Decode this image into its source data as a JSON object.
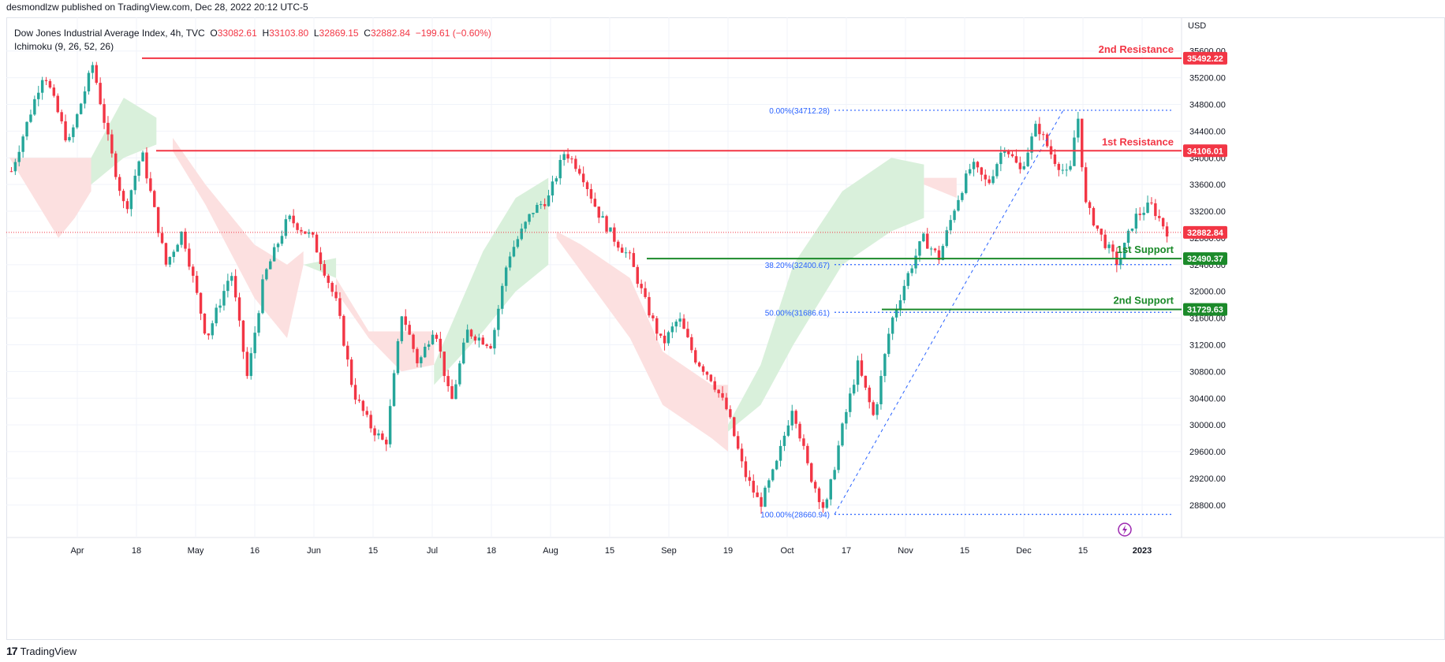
{
  "header": {
    "publisher_line": "desmondlzw published on TradingView.com, Dec 28, 2022 20:12 UTC-5"
  },
  "legend": {
    "symbol": "Dow Jones Industrial Average Index, 4h, TVC",
    "open_label": "O",
    "open": "33082.61",
    "high_label": "H",
    "high": "33103.80",
    "low_label": "L",
    "low": "32869.15",
    "close_label": "C",
    "close": "32882.84",
    "change": "−199.61 (−0.60%)",
    "indicator": "Ichimoku (9, 26, 52, 26)"
  },
  "footer": {
    "brand": "TradingView",
    "logo_glyph": "17"
  },
  "colors": {
    "up": "#26a69a",
    "down": "#f23645",
    "resistance": "#f23645",
    "support": "#1b8a2a",
    "cloud_green": "#d7efd9",
    "cloud_red": "#fcdede",
    "fib": "#2962ff",
    "grid": "#f0f3fa"
  },
  "chart_data": {
    "type": "candlestick",
    "currency": "USD",
    "y_ticks": [
      28800,
      29200,
      29600,
      30000,
      30400,
      30800,
      31200,
      31600,
      32000,
      32400,
      32800,
      33200,
      33600,
      34000,
      34400,
      34800,
      35200,
      35600
    ],
    "y_range": [
      28550,
      35750
    ],
    "x_tick_labels": [
      "Apr",
      "18",
      "May",
      "16",
      "Jun",
      "15",
      "Jul",
      "18",
      "Aug",
      "15",
      "Sep",
      "19",
      "Oct",
      "17",
      "Nov",
      "15",
      "Dec",
      "15",
      "2023"
    ],
    "levels": [
      {
        "name": "2nd Resistance",
        "value": 35492.22,
        "value_label": "35492.22",
        "kind": "resistance"
      },
      {
        "name": "1st Resistance",
        "value": 34106.01,
        "value_label": "34106.01",
        "kind": "resistance"
      },
      {
        "name": "1st Support",
        "value": 32490.37,
        "value_label": "32490.37",
        "kind": "support"
      },
      {
        "name": "2nd Support",
        "value": 31729.63,
        "value_label": "31729.63",
        "kind": "support"
      }
    ],
    "last_price": {
      "value": 32882.84,
      "label": "32882.84"
    },
    "fibonacci": [
      {
        "label": "0.00%(34712.28)",
        "value": 34712.28
      },
      {
        "label": "38.20%(32400.67)",
        "value": 32400.67
      },
      {
        "label": "50.00%(31686.61)",
        "value": 31686.61
      },
      {
        "label": "100.00%(28660.94)",
        "value": 28660.94
      }
    ],
    "price_path": [
      [
        0,
        33800
      ],
      [
        4,
        35300
      ],
      [
        7,
        34200
      ],
      [
        10,
        35400
      ],
      [
        12,
        34200
      ],
      [
        14,
        33200
      ],
      [
        16,
        34100
      ],
      [
        19,
        32400
      ],
      [
        21,
        32900
      ],
      [
        24,
        31300
      ],
      [
        27,
        32300
      ],
      [
        29,
        30700
      ],
      [
        31,
        32200
      ],
      [
        34,
        33100
      ],
      [
        37,
        32800
      ],
      [
        40,
        31800
      ],
      [
        42,
        30500
      ],
      [
        44,
        30000
      ],
      [
        46,
        29700
      ],
      [
        48,
        31700
      ],
      [
        50,
        30900
      ],
      [
        52,
        31500
      ],
      [
        54,
        30300
      ],
      [
        56,
        31400
      ],
      [
        59,
        31200
      ],
      [
        61,
        32500
      ],
      [
        64,
        33200
      ],
      [
        66,
        33400
      ],
      [
        68,
        34100
      ],
      [
        70,
        33800
      ],
      [
        72,
        33200
      ],
      [
        74,
        32800
      ],
      [
        76,
        32500
      ],
      [
        78,
        31800
      ],
      [
        80,
        31200
      ],
      [
        82,
        31600
      ],
      [
        84,
        31000
      ],
      [
        86,
        30700
      ],
      [
        88,
        30200
      ],
      [
        90,
        29300
      ],
      [
        92,
        28800
      ],
      [
        94,
        29400
      ],
      [
        96,
        30300
      ],
      [
        98,
        29300
      ],
      [
        100,
        28700
      ],
      [
        102,
        29900
      ],
      [
        104,
        30900
      ],
      [
        106,
        30100
      ],
      [
        108,
        31500
      ],
      [
        110,
        32200
      ],
      [
        112,
        32800
      ],
      [
        114,
        32500
      ],
      [
        116,
        33300
      ],
      [
        118,
        33900
      ],
      [
        120,
        33600
      ],
      [
        122,
        34200
      ],
      [
        124,
        33800
      ],
      [
        126,
        34500
      ],
      [
        128,
        34000
      ],
      [
        130,
        33700
      ],
      [
        131,
        34700
      ],
      [
        132,
        33300
      ],
      [
        134,
        32800
      ],
      [
        136,
        32400
      ],
      [
        138,
        33100
      ],
      [
        140,
        33300
      ],
      [
        142,
        32900
      ]
    ],
    "ichimoku_cloud": [
      {
        "color": "red",
        "pts": [
          [
            0,
            34000,
            34000
          ],
          [
            6,
            34000,
            32800
          ],
          [
            8,
            34000,
            33100
          ],
          [
            10,
            34000,
            33500
          ]
        ]
      },
      {
        "color": "green",
        "pts": [
          [
            10,
            34000,
            33600
          ],
          [
            14,
            34900,
            34000
          ],
          [
            18,
            34600,
            34200
          ]
        ]
      },
      {
        "color": "red",
        "pts": [
          [
            20,
            34300,
            34100
          ],
          [
            24,
            33600,
            33300
          ],
          [
            30,
            32700,
            31900
          ],
          [
            34,
            32400,
            31300
          ],
          [
            36,
            32600,
            32400
          ]
        ]
      },
      {
        "color": "green",
        "pts": [
          [
            36,
            32400,
            32400
          ],
          [
            40,
            32500,
            32200
          ]
        ]
      },
      {
        "color": "red",
        "pts": [
          [
            40,
            32200,
            32000
          ],
          [
            44,
            31400,
            31300
          ],
          [
            48,
            31400,
            30800
          ],
          [
            52,
            31400,
            30900
          ]
        ]
      },
      {
        "color": "green",
        "pts": [
          [
            52,
            30900,
            30600
          ],
          [
            58,
            32600,
            31400
          ],
          [
            62,
            33400,
            32000
          ],
          [
            66,
            33700,
            32400
          ]
        ]
      },
      {
        "color": "red",
        "pts": [
          [
            67,
            32900,
            32800
          ],
          [
            70,
            32700,
            32300
          ],
          [
            76,
            32200,
            31300
          ],
          [
            80,
            31100,
            30300
          ],
          [
            86,
            30600,
            29800
          ],
          [
            88,
            30600,
            29600
          ]
        ]
      },
      {
        "color": "green",
        "pts": [
          [
            88,
            30000,
            29900
          ],
          [
            92,
            30900,
            30300
          ],
          [
            96,
            32400,
            31200
          ],
          [
            102,
            33500,
            32400
          ],
          [
            108,
            34000,
            32900
          ],
          [
            112,
            33900,
            33100
          ]
        ]
      },
      {
        "color": "red",
        "pts": [
          [
            112,
            33700,
            33600
          ],
          [
            116,
            33700,
            33400
          ]
        ]
      }
    ]
  }
}
